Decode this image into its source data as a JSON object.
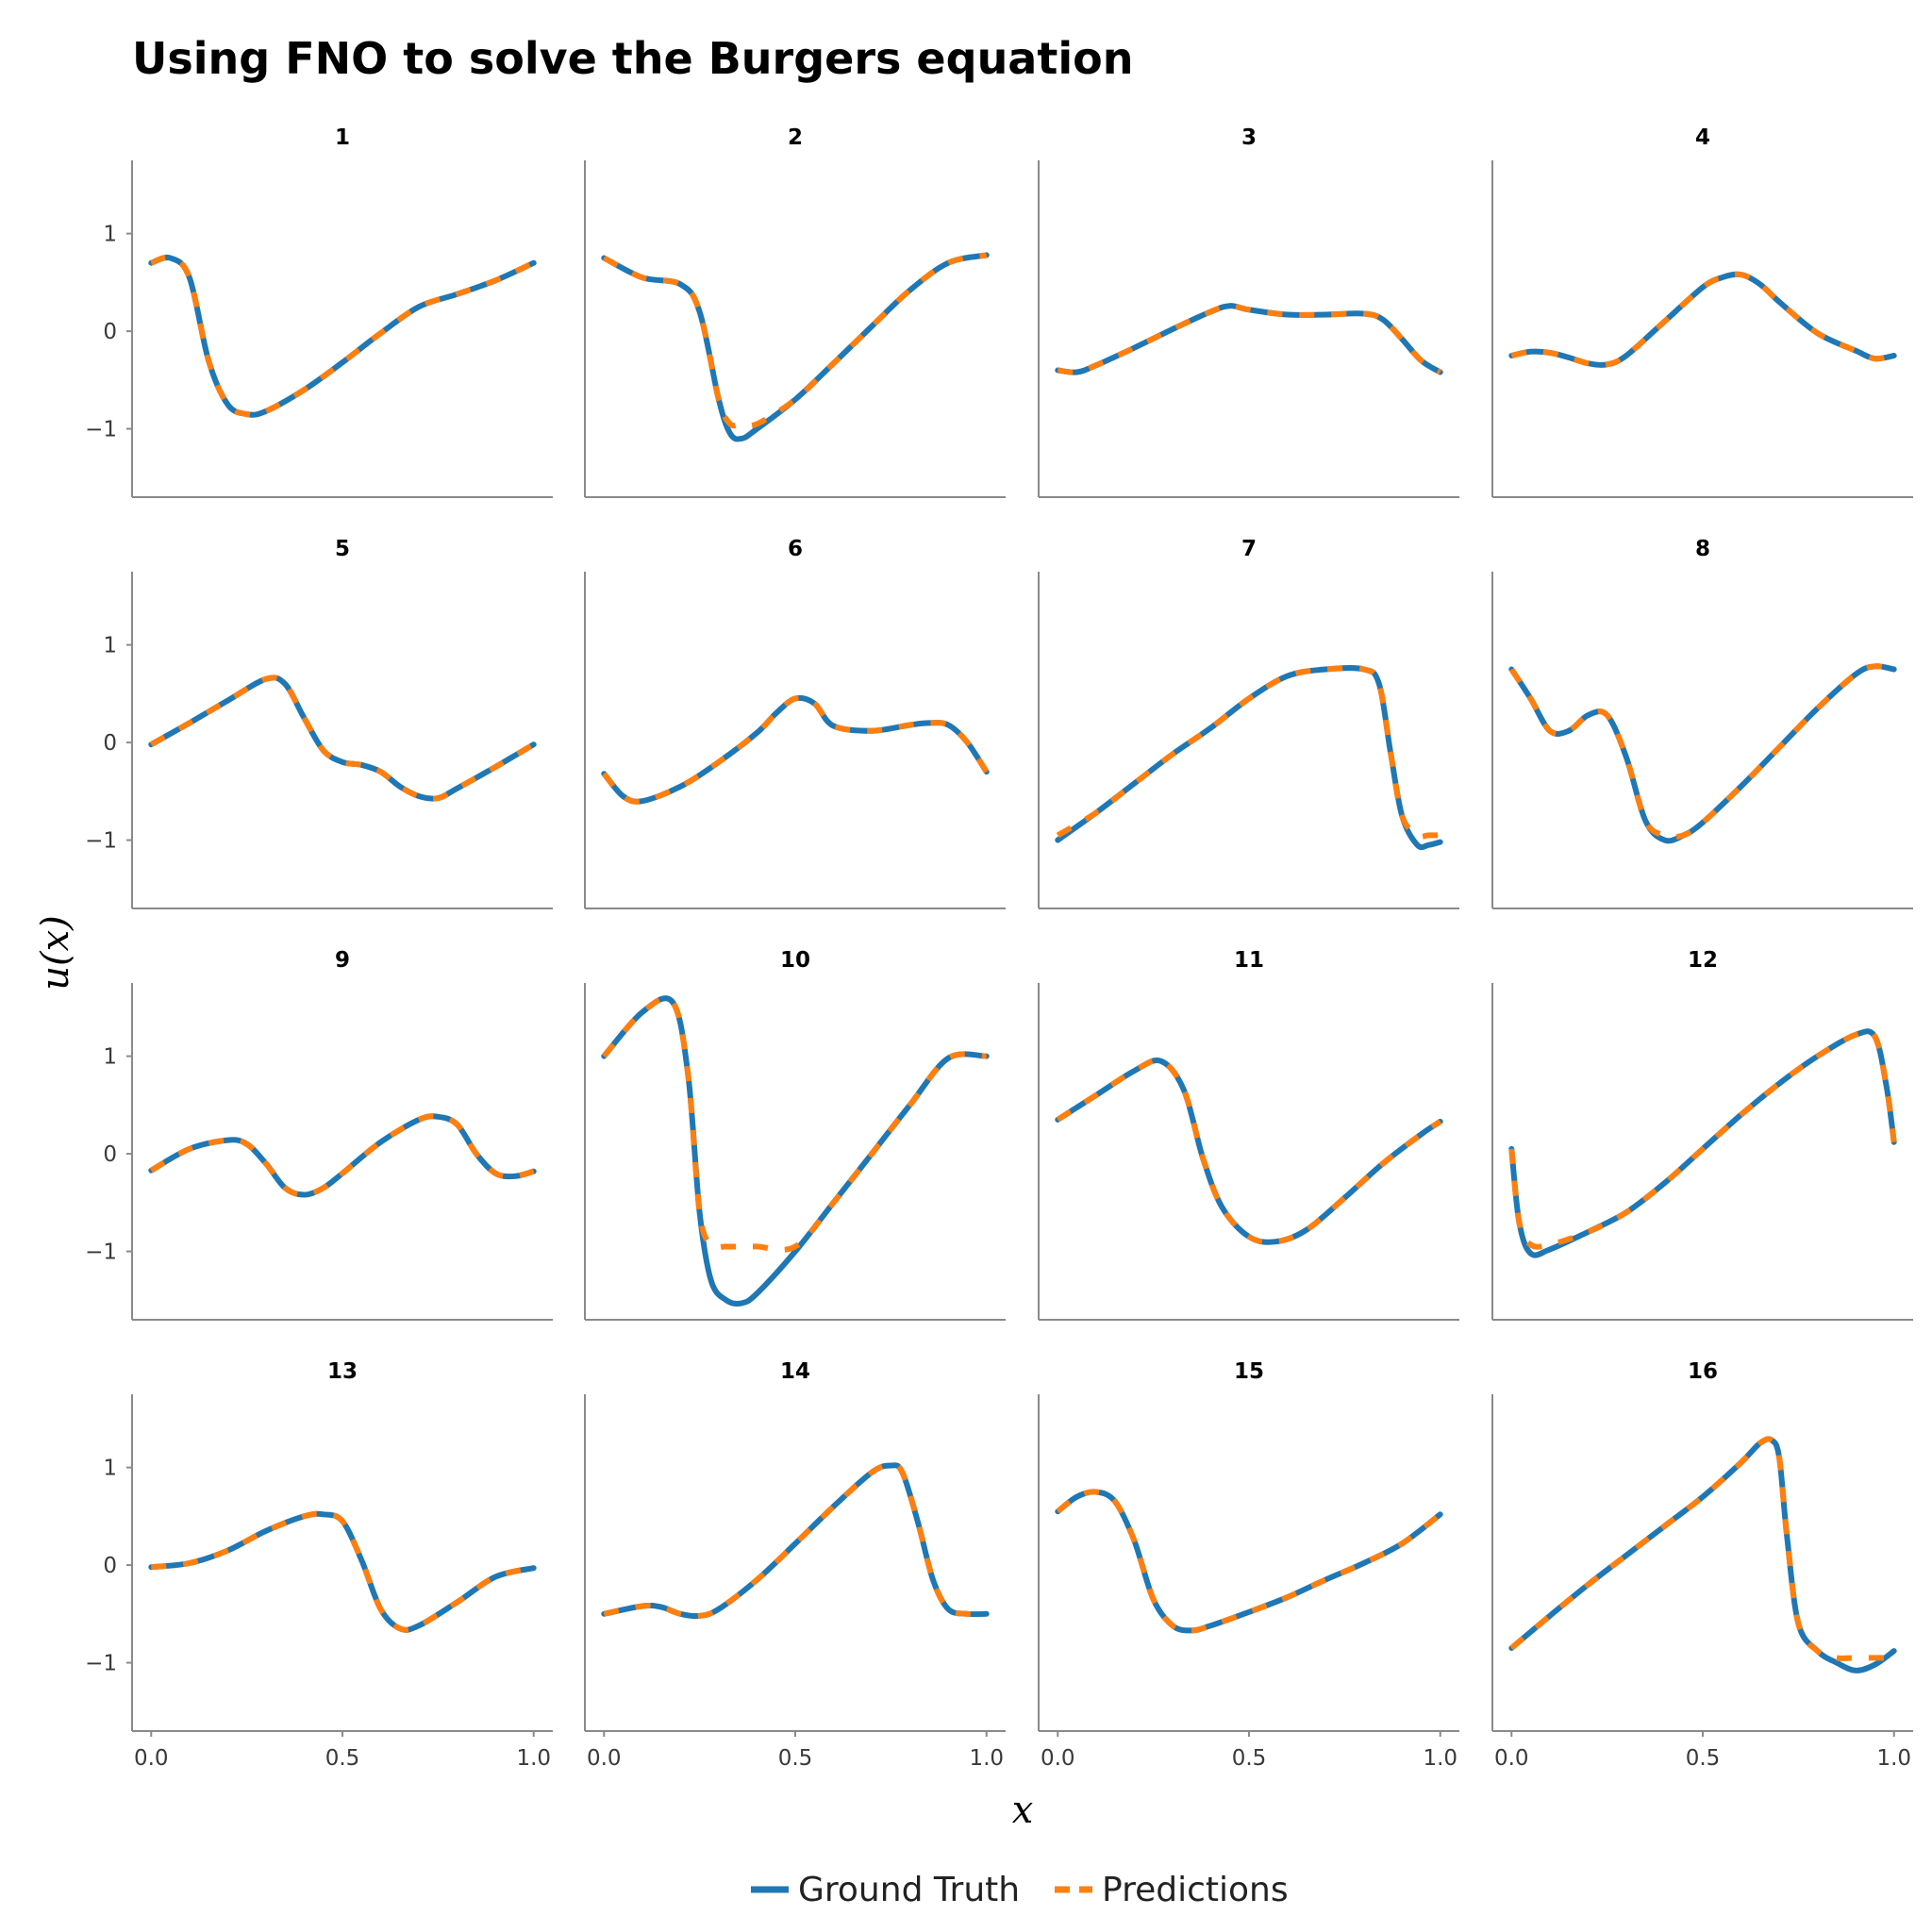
{
  "chart_data": {
    "type": "line",
    "title": "Using FNO to solve the Burgers equation",
    "xlabel": "x",
    "ylabel": "u(x)",
    "xlim": [
      -0.05,
      1.05
    ],
    "ylim": [
      -1.7,
      1.75
    ],
    "xticks": [
      "0.0",
      "0.5",
      "1.0"
    ],
    "xtick_values": [
      0,
      0.5,
      1
    ],
    "yticks": [
      "−1",
      "0",
      "1"
    ],
    "ytick_values": [
      -1,
      0,
      1
    ],
    "grid": false,
    "legend_position": "bottom-center",
    "series_styles": [
      {
        "name": "Ground Truth",
        "color": "#1f77b4",
        "style": "solid"
      },
      {
        "name": "Predictions",
        "color": "#ff7f0e",
        "style": "dashed"
      }
    ],
    "panels": [
      {
        "title": "1",
        "x": [
          0,
          0.05,
          0.1,
          0.15,
          0.2,
          0.25,
          0.3,
          0.4,
          0.5,
          0.6,
          0.7,
          0.8,
          0.9,
          1.0
        ],
        "truth": [
          0.7,
          0.75,
          0.55,
          -0.3,
          -0.75,
          -0.85,
          -0.82,
          -0.6,
          -0.32,
          -0.02,
          0.25,
          0.38,
          0.52,
          0.7
        ],
        "pred": [
          0.7,
          0.75,
          0.55,
          -0.3,
          -0.75,
          -0.85,
          -0.82,
          -0.6,
          -0.32,
          -0.02,
          0.25,
          0.38,
          0.52,
          0.7
        ]
      },
      {
        "title": "2",
        "x": [
          0,
          0.1,
          0.2,
          0.25,
          0.3,
          0.33,
          0.36,
          0.4,
          0.5,
          0.6,
          0.7,
          0.8,
          0.9,
          1.0
        ],
        "truth": [
          0.75,
          0.55,
          0.48,
          0.2,
          -0.7,
          -1.05,
          -1.1,
          -1.0,
          -0.7,
          -0.33,
          0.05,
          0.42,
          0.7,
          0.78
        ],
        "pred": [
          0.75,
          0.55,
          0.48,
          0.2,
          -0.7,
          -0.95,
          -0.95,
          -0.95,
          -0.7,
          -0.33,
          0.05,
          0.42,
          0.7,
          0.78
        ]
      },
      {
        "title": "3",
        "x": [
          0,
          0.05,
          0.1,
          0.2,
          0.3,
          0.4,
          0.45,
          0.5,
          0.6,
          0.7,
          0.8,
          0.85,
          0.9,
          0.95,
          1.0
        ],
        "truth": [
          -0.4,
          -0.42,
          -0.35,
          -0.17,
          0.02,
          0.2,
          0.26,
          0.22,
          0.17,
          0.17,
          0.18,
          0.12,
          -0.08,
          -0.3,
          -0.42
        ],
        "pred": [
          -0.4,
          -0.42,
          -0.35,
          -0.17,
          0.02,
          0.2,
          0.26,
          0.22,
          0.17,
          0.17,
          0.18,
          0.12,
          -0.08,
          -0.3,
          -0.42
        ]
      },
      {
        "title": "4",
        "x": [
          0,
          0.05,
          0.1,
          0.15,
          0.2,
          0.25,
          0.3,
          0.4,
          0.5,
          0.55,
          0.6,
          0.65,
          0.7,
          0.8,
          0.9,
          0.95,
          1.0
        ],
        "truth": [
          -0.25,
          -0.21,
          -0.22,
          -0.27,
          -0.33,
          -0.34,
          -0.25,
          0.1,
          0.45,
          0.55,
          0.58,
          0.48,
          0.3,
          -0.02,
          -0.2,
          -0.28,
          -0.25
        ],
        "pred": [
          -0.25,
          -0.21,
          -0.22,
          -0.27,
          -0.33,
          -0.34,
          -0.25,
          0.1,
          0.45,
          0.55,
          0.58,
          0.48,
          0.3,
          -0.02,
          -0.2,
          -0.28,
          -0.25
        ]
      },
      {
        "title": "5",
        "x": [
          0,
          0.1,
          0.2,
          0.3,
          0.35,
          0.4,
          0.45,
          0.5,
          0.55,
          0.6,
          0.65,
          0.7,
          0.75,
          0.8,
          0.9,
          1.0
        ],
        "truth": [
          -0.02,
          0.2,
          0.43,
          0.65,
          0.6,
          0.25,
          -0.08,
          -0.2,
          -0.23,
          -0.3,
          -0.45,
          -0.55,
          -0.57,
          -0.47,
          -0.25,
          -0.02
        ],
        "pred": [
          -0.02,
          0.2,
          0.43,
          0.65,
          0.6,
          0.25,
          -0.08,
          -0.2,
          -0.23,
          -0.3,
          -0.45,
          -0.55,
          -0.57,
          -0.47,
          -0.25,
          -0.02
        ]
      },
      {
        "title": "6",
        "x": [
          0,
          0.05,
          0.1,
          0.2,
          0.3,
          0.4,
          0.45,
          0.5,
          0.55,
          0.6,
          0.7,
          0.8,
          0.85,
          0.9,
          0.95,
          1.0
        ],
        "truth": [
          -0.32,
          -0.55,
          -0.6,
          -0.45,
          -0.2,
          0.1,
          0.3,
          0.45,
          0.4,
          0.17,
          0.12,
          0.18,
          0.2,
          0.18,
          0.0,
          -0.3
        ],
        "pred": [
          -0.32,
          -0.55,
          -0.6,
          -0.45,
          -0.2,
          0.1,
          0.3,
          0.45,
          0.4,
          0.17,
          0.12,
          0.18,
          0.2,
          0.18,
          0.0,
          -0.3
        ]
      },
      {
        "title": "7",
        "x": [
          0,
          0.1,
          0.2,
          0.3,
          0.4,
          0.5,
          0.6,
          0.7,
          0.8,
          0.84,
          0.87,
          0.9,
          0.94,
          0.97,
          1.0
        ],
        "truth": [
          -1.0,
          -0.72,
          -0.42,
          -0.12,
          0.15,
          0.45,
          0.68,
          0.75,
          0.75,
          0.6,
          -0.1,
          -0.75,
          -1.05,
          -1.05,
          -1.02
        ],
        "pred": [
          -0.95,
          -0.72,
          -0.42,
          -0.12,
          0.15,
          0.45,
          0.68,
          0.75,
          0.75,
          0.6,
          -0.1,
          -0.75,
          -0.95,
          -0.95,
          -0.95
        ]
      },
      {
        "title": "8",
        "x": [
          0,
          0.05,
          0.1,
          0.15,
          0.2,
          0.25,
          0.3,
          0.35,
          0.4,
          0.45,
          0.5,
          0.6,
          0.7,
          0.8,
          0.9,
          0.95,
          1.0
        ],
        "truth": [
          0.75,
          0.45,
          0.12,
          0.12,
          0.28,
          0.28,
          -0.15,
          -0.8,
          -1.0,
          -0.95,
          -0.82,
          -0.45,
          -0.05,
          0.35,
          0.7,
          0.78,
          0.75
        ],
        "pred": [
          0.75,
          0.45,
          0.12,
          0.12,
          0.28,
          0.28,
          -0.15,
          -0.8,
          -0.95,
          -0.95,
          -0.82,
          -0.45,
          -0.05,
          0.35,
          0.7,
          0.78,
          0.75
        ]
      },
      {
        "title": "9",
        "x": [
          0,
          0.1,
          0.2,
          0.25,
          0.3,
          0.35,
          0.4,
          0.45,
          0.5,
          0.6,
          0.7,
          0.75,
          0.8,
          0.85,
          0.9,
          0.95,
          1.0
        ],
        "truth": [
          -0.17,
          0.05,
          0.14,
          0.1,
          -0.1,
          -0.35,
          -0.42,
          -0.35,
          -0.2,
          0.12,
          0.35,
          0.38,
          0.3,
          0.0,
          -0.2,
          -0.23,
          -0.18
        ],
        "pred": [
          -0.17,
          0.05,
          0.14,
          0.1,
          -0.1,
          -0.35,
          -0.42,
          -0.35,
          -0.2,
          0.12,
          0.35,
          0.38,
          0.3,
          0.0,
          -0.2,
          -0.23,
          -0.18
        ]
      },
      {
        "title": "10",
        "x": [
          0,
          0.1,
          0.18,
          0.22,
          0.25,
          0.28,
          0.32,
          0.36,
          0.4,
          0.5,
          0.6,
          0.7,
          0.8,
          0.9,
          1.0
        ],
        "truth": [
          1.0,
          1.45,
          1.55,
          0.8,
          -0.6,
          -1.3,
          -1.5,
          -1.53,
          -1.43,
          -1.0,
          -0.5,
          0.0,
          0.5,
          0.98,
          1.0
        ],
        "pred": [
          1.0,
          1.45,
          1.55,
          0.8,
          -0.6,
          -0.93,
          -0.95,
          -0.95,
          -0.95,
          -0.95,
          -0.5,
          0.0,
          0.5,
          0.98,
          1.0
        ]
      },
      {
        "title": "11",
        "x": [
          0,
          0.1,
          0.2,
          0.27,
          0.33,
          0.38,
          0.43,
          0.5,
          0.57,
          0.65,
          0.75,
          0.85,
          0.95,
          1.0
        ],
        "truth": [
          0.35,
          0.6,
          0.85,
          0.95,
          0.65,
          -0.05,
          -0.55,
          -0.85,
          -0.9,
          -0.78,
          -0.45,
          -0.1,
          0.2,
          0.33
        ],
        "pred": [
          0.35,
          0.6,
          0.85,
          0.95,
          0.65,
          -0.05,
          -0.55,
          -0.85,
          -0.9,
          -0.78,
          -0.45,
          -0.1,
          0.2,
          0.33
        ]
      },
      {
        "title": "12",
        "x": [
          0,
          0.02,
          0.05,
          0.1,
          0.2,
          0.3,
          0.4,
          0.5,
          0.6,
          0.7,
          0.8,
          0.9,
          0.95,
          0.98,
          1.0
        ],
        "truth": [
          0.05,
          -0.7,
          -1.02,
          -0.98,
          -0.8,
          -0.6,
          -0.3,
          0.05,
          0.4,
          0.72,
          1.0,
          1.22,
          1.2,
          0.7,
          0.12
        ],
        "pred": [
          0.05,
          -0.7,
          -0.93,
          -0.93,
          -0.8,
          -0.6,
          -0.3,
          0.05,
          0.4,
          0.72,
          1.0,
          1.22,
          1.2,
          0.7,
          0.12
        ]
      },
      {
        "title": "13",
        "x": [
          0,
          0.1,
          0.2,
          0.3,
          0.4,
          0.45,
          0.5,
          0.55,
          0.6,
          0.65,
          0.7,
          0.8,
          0.9,
          1.0
        ],
        "truth": [
          -0.02,
          0.02,
          0.15,
          0.35,
          0.5,
          0.52,
          0.45,
          0.05,
          -0.45,
          -0.65,
          -0.62,
          -0.38,
          -0.12,
          -0.03
        ],
        "pred": [
          -0.02,
          0.02,
          0.15,
          0.35,
          0.5,
          0.52,
          0.45,
          0.05,
          -0.45,
          -0.65,
          -0.62,
          -0.38,
          -0.12,
          -0.03
        ]
      },
      {
        "title": "14",
        "x": [
          0,
          0.1,
          0.15,
          0.2,
          0.25,
          0.3,
          0.4,
          0.5,
          0.6,
          0.7,
          0.75,
          0.78,
          0.82,
          0.86,
          0.9,
          0.95,
          1.0
        ],
        "truth": [
          -0.5,
          -0.42,
          -0.43,
          -0.5,
          -0.52,
          -0.45,
          -0.15,
          0.22,
          0.6,
          0.95,
          1.02,
          0.95,
          0.45,
          -0.15,
          -0.45,
          -0.5,
          -0.5
        ],
        "pred": [
          -0.5,
          -0.42,
          -0.43,
          -0.5,
          -0.52,
          -0.45,
          -0.15,
          0.22,
          0.6,
          0.95,
          1.02,
          0.95,
          0.45,
          -0.15,
          -0.45,
          -0.5,
          -0.5
        ]
      },
      {
        "title": "15",
        "x": [
          0,
          0.05,
          0.1,
          0.15,
          0.2,
          0.25,
          0.3,
          0.35,
          0.4,
          0.5,
          0.6,
          0.7,
          0.8,
          0.9,
          1.0
        ],
        "truth": [
          0.55,
          0.7,
          0.75,
          0.65,
          0.25,
          -0.35,
          -0.62,
          -0.67,
          -0.62,
          -0.48,
          -0.33,
          -0.15,
          0.02,
          0.22,
          0.52
        ],
        "pred": [
          0.55,
          0.7,
          0.75,
          0.65,
          0.25,
          -0.35,
          -0.62,
          -0.67,
          -0.62,
          -0.48,
          -0.33,
          -0.15,
          0.02,
          0.22,
          0.52
        ]
      },
      {
        "title": "16",
        "x": [
          0,
          0.1,
          0.2,
          0.3,
          0.4,
          0.5,
          0.6,
          0.65,
          0.68,
          0.7,
          0.72,
          0.75,
          0.8,
          0.85,
          0.9,
          0.95,
          1.0
        ],
        "truth": [
          -0.85,
          -0.52,
          -0.2,
          0.1,
          0.4,
          0.7,
          1.05,
          1.25,
          1.28,
          1.1,
          0.3,
          -0.6,
          -0.88,
          -1.0,
          -1.08,
          -1.02,
          -0.88
        ],
        "pred": [
          -0.85,
          -0.52,
          -0.2,
          0.1,
          0.4,
          0.7,
          1.05,
          1.25,
          1.28,
          1.1,
          0.3,
          -0.6,
          -0.88,
          -0.95,
          -0.95,
          -0.95,
          -0.95
        ]
      }
    ]
  }
}
